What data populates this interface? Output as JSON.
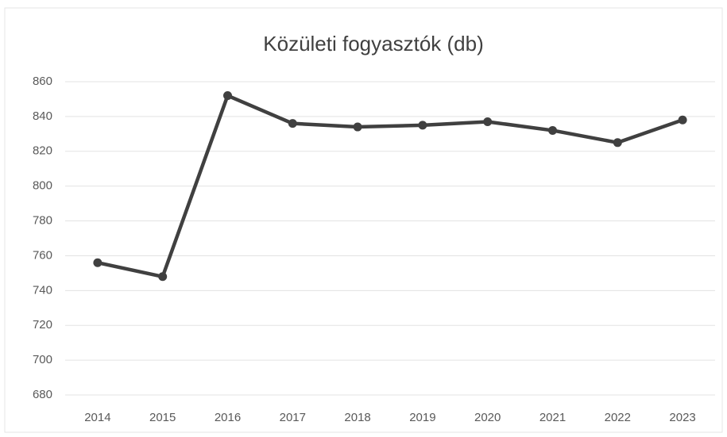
{
  "chart_data": {
    "type": "line",
    "title": "Közületi fogyasztók (db)",
    "categories": [
      "2014",
      "2015",
      "2016",
      "2017",
      "2018",
      "2019",
      "2020",
      "2021",
      "2022",
      "2023"
    ],
    "series": [
      {
        "name": "Közületi fogyasztók",
        "color": "#404040",
        "values": [
          756,
          748,
          852,
          836,
          834,
          835,
          837,
          832,
          825,
          838
        ]
      }
    ],
    "ylim": [
      680,
      860
    ],
    "yticks": [
      680,
      700,
      720,
      740,
      760,
      780,
      800,
      820,
      840,
      860
    ],
    "grid": true,
    "legend": false
  }
}
